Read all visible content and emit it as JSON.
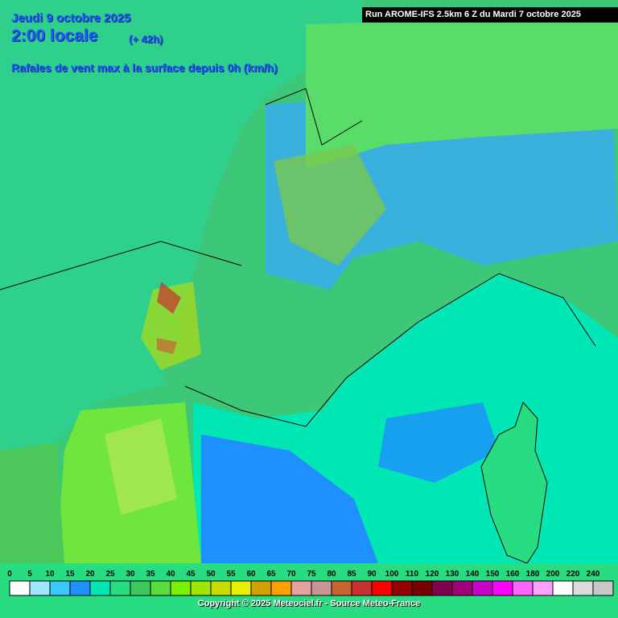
{
  "header": {
    "date": "Jeudi 9 octobre 2025",
    "time": "2:00 locale",
    "lead": "(+ 42h)",
    "subtitle": "Rafales de vent max à la surface depuis 0h (km/h)",
    "run": "Run AROME-IFS 2.5km 6 Z du Mardi 7 octobre 2025"
  },
  "legend": {
    "items": [
      {
        "value": 0,
        "color": "#ffffff"
      },
      {
        "value": 5,
        "color": "#a0e6ff"
      },
      {
        "value": 10,
        "color": "#3cc8ff"
      },
      {
        "value": 15,
        "color": "#1e90ff"
      },
      {
        "value": 20,
        "color": "#00e6b4"
      },
      {
        "value": 25,
        "color": "#28dc82"
      },
      {
        "value": 30,
        "color": "#3cc85a"
      },
      {
        "value": 35,
        "color": "#5adc3c"
      },
      {
        "value": 40,
        "color": "#78f000"
      },
      {
        "value": 45,
        "color": "#a0e600"
      },
      {
        "value": 50,
        "color": "#c8dc00"
      },
      {
        "value": 55,
        "color": "#e6f000"
      },
      {
        "value": 60,
        "color": "#d2a000"
      },
      {
        "value": 65,
        "color": "#ffa000"
      },
      {
        "value": 70,
        "color": "#e6a0a0"
      },
      {
        "value": 75,
        "color": "#c89696"
      },
      {
        "value": 80,
        "color": "#c86432"
      },
      {
        "value": 85,
        "color": "#c83232"
      },
      {
        "value": 90,
        "color": "#ff0000"
      },
      {
        "value": 100,
        "color": "#960000"
      },
      {
        "value": 110,
        "color": "#780000"
      },
      {
        "value": 120,
        "color": "#820050"
      },
      {
        "value": 130,
        "color": "#a00078"
      },
      {
        "value": 140,
        "color": "#c800c8"
      },
      {
        "value": 150,
        "color": "#ff00ff"
      },
      {
        "value": 160,
        "color": "#ff64ff"
      },
      {
        "value": 180,
        "color": "#ffa0ff"
      },
      {
        "value": 200,
        "color": "#ffffff"
      },
      {
        "value": 220,
        "color": "#dcdcdc"
      },
      {
        "value": 240,
        "color": "#c8c8c8"
      }
    ]
  },
  "footer": {
    "copyright": "Copyright © 2025 Meteociel.fr - Source Meteo-France"
  }
}
